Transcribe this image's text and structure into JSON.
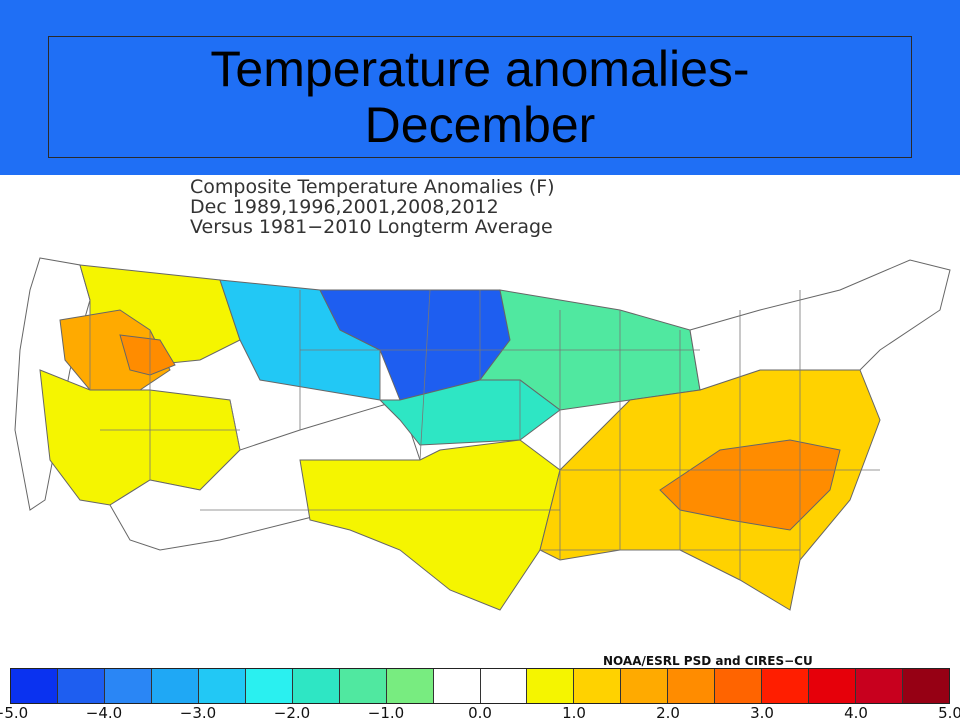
{
  "slide": {
    "title": "Temperature anomalies- December",
    "accent_color": "#1f6ff5"
  },
  "figure": {
    "title_lines": [
      "Composite Temperature Anomalies (F)",
      "Dec   1989,1996,2001,2008,2012",
      "Versus 1981−2010 Longterm Average"
    ],
    "credit": "NOAA/ESRL PSD and CIRES−CU"
  },
  "legend": {
    "colors": [
      "#0a32f0",
      "#1e5ef0",
      "#2a86f5",
      "#1fa8f5",
      "#22c8f5",
      "#2af0f0",
      "#2ee6c4",
      "#50e8a0",
      "#78ec80",
      "#ffffff",
      "#ffffff",
      "#f5f500",
      "#ffd200",
      "#ffaa00",
      "#ff8c00",
      "#ff6400",
      "#ff1e00",
      "#e6000a",
      "#c8001e",
      "#960014"
    ],
    "ticks": [
      "−5.0",
      "−4.0",
      "−3.0",
      "−2.0",
      "−1.0",
      "0.0",
      "1.0",
      "2.0",
      "3.0",
      "4.0",
      "5.0"
    ]
  },
  "map": {
    "regions": [
      {
        "name": "pacific-northwest-coast",
        "color": "#ffffff"
      },
      {
        "name": "inland-northwest",
        "color": "#f5f500"
      },
      {
        "name": "idaho-oregon",
        "color": "#ffaa00"
      },
      {
        "name": "snake-river",
        "color": "#ff8c00"
      },
      {
        "name": "great-basin",
        "color": "#f5f500"
      },
      {
        "name": "southwest",
        "color": "#ffffff"
      },
      {
        "name": "northern-rockies",
        "color": "#22c8f5"
      },
      {
        "name": "northern-plains",
        "color": "#1e5ef0"
      },
      {
        "name": "upper-midwest",
        "color": "#50e8a0"
      },
      {
        "name": "central-plains",
        "color": "#2ee6c4"
      },
      {
        "name": "southern-plains",
        "color": "#f5f500"
      },
      {
        "name": "southeast",
        "color": "#ffd200"
      },
      {
        "name": "carolinas",
        "color": "#ff8c00"
      },
      {
        "name": "northeast",
        "color": "#ffffff"
      }
    ]
  }
}
